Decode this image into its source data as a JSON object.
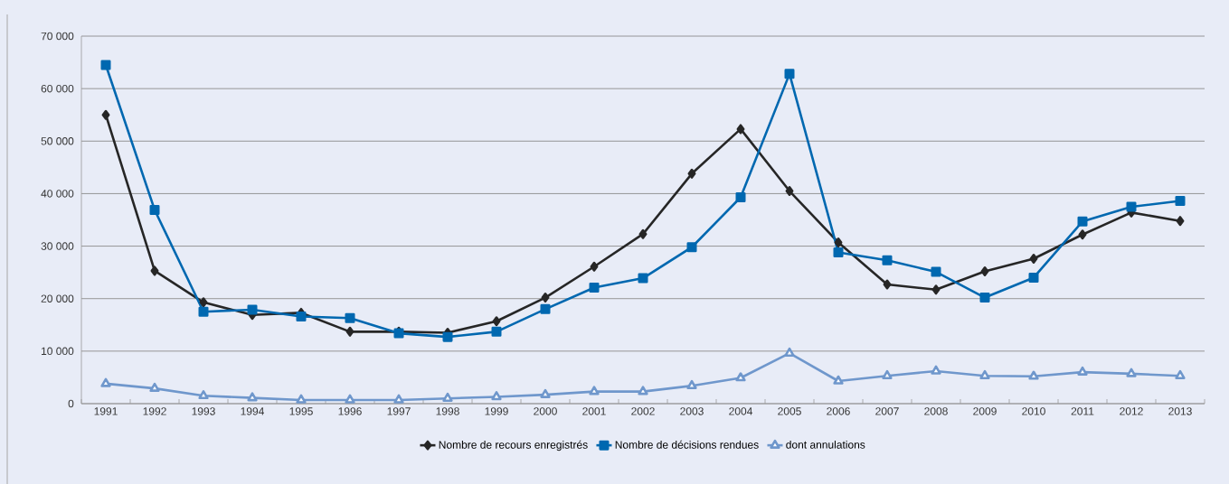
{
  "chart_data": {
    "type": "line",
    "categories": [
      "1991",
      "1992",
      "1993",
      "1994",
      "1995",
      "1996",
      "1997",
      "1998",
      "1999",
      "2000",
      "2001",
      "2002",
      "2003",
      "2004",
      "2005",
      "2006",
      "2007",
      "2008",
      "2009",
      "2010",
      "2011",
      "2012",
      "2013"
    ],
    "series": [
      {
        "name": "Nombre de recours enregistrés",
        "color": "#262626",
        "marker": "diamond",
        "values": [
          55000,
          25300,
          19300,
          16900,
          17300,
          13700,
          13700,
          13500,
          15700,
          20200,
          26100,
          32300,
          43800,
          52300,
          40500,
          30700,
          22700,
          21700,
          25200,
          27600,
          32200,
          36400,
          34800
        ]
      },
      {
        "name": "Nombre de décisions rendues",
        "color": "#0068b0",
        "marker": "square",
        "values": [
          64500,
          36900,
          17500,
          17900,
          16600,
          16300,
          13400,
          12700,
          13700,
          18000,
          22100,
          23900,
          29800,
          39300,
          62800,
          28800,
          27300,
          25100,
          20200,
          24000,
          34700,
          37500,
          38600
        ]
      },
      {
        "name": "dont annulations",
        "color": "#6f97cc",
        "marker": "triangle",
        "values": [
          3800,
          2900,
          1500,
          1100,
          700,
          700,
          700,
          1000,
          1300,
          1700,
          2300,
          2300,
          3400,
          4900,
          9600,
          4300,
          5300,
          6200,
          5300,
          5200,
          6000,
          5700,
          5300
        ]
      }
    ],
    "ylim": [
      0,
      70000
    ],
    "yticks": [
      0,
      {
        "value": 10000,
        "label": "10 000"
      },
      {
        "value": 20000,
        "label": "20 000"
      },
      {
        "value": 30000,
        "label": "30 000"
      },
      {
        "value": 40000,
        "label": "40 000"
      },
      {
        "value": 50000,
        "label": "50 000"
      },
      {
        "value": 60000,
        "label": "60 000"
      },
      {
        "value": 70000,
        "label": "70 000"
      }
    ],
    "grid": "y",
    "legend": "bottom",
    "line_style": "solid"
  }
}
